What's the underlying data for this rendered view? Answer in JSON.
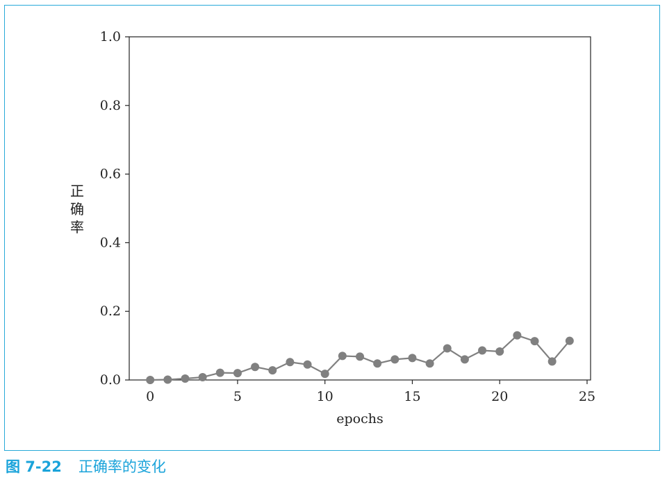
{
  "chart_data": {
    "type": "line",
    "xlabel": "epochs",
    "ylabel": [
      "正",
      "确",
      "率"
    ],
    "xlim": [
      -1.2,
      25.2
    ],
    "ylim": [
      0.0,
      1.0
    ],
    "xticks": [
      "0",
      "5",
      "10",
      "15",
      "20",
      "25"
    ],
    "yticks": [
      "0.0",
      "0.2",
      "0.4",
      "0.6",
      "0.8",
      "1.0"
    ],
    "series_color": "#808080",
    "x": [
      0,
      1,
      2,
      3,
      4,
      5,
      6,
      7,
      8,
      9,
      10,
      11,
      12,
      13,
      14,
      15,
      16,
      17,
      18,
      19,
      20,
      21,
      22,
      23,
      24
    ],
    "values": [
      0.0,
      0.001,
      0.004,
      0.008,
      0.021,
      0.02,
      0.038,
      0.028,
      0.052,
      0.045,
      0.018,
      0.07,
      0.068,
      0.048,
      0.06,
      0.064,
      0.048,
      0.092,
      0.06,
      0.086,
      0.083,
      0.13,
      0.113,
      0.054,
      0.114
    ]
  },
  "caption": {
    "number": "图 7-22",
    "text": "正确率的变化"
  },
  "colors": {
    "frame": "#27a9d8",
    "caption": "#1aa3da"
  }
}
